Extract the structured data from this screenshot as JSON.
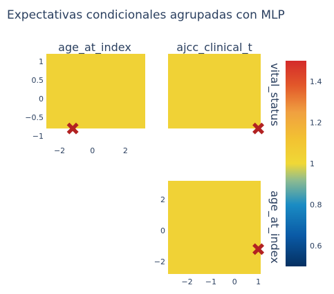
{
  "chart_data": {
    "type": "heatmap",
    "title": "Expectativas condicionales agrupadas con MLP",
    "colorbar": {
      "range": [
        0.5,
        1.5
      ],
      "ticks": [
        "0.6",
        "0.8",
        "1",
        "1.2",
        "1.4"
      ],
      "tick_values": [
        0.6,
        0.8,
        1.0,
        1.2,
        1.4
      ],
      "colorscale": [
        "#053061",
        "#2166ac",
        "#0571b0",
        "#4393c3",
        "#92c5de",
        "#f0d836",
        "#f1c232",
        "#f4a582",
        "#e0582a",
        "#d6302a"
      ]
    },
    "panels": [
      {
        "id": "age-vital",
        "column_title": "age_at_index",
        "row_title": "",
        "xlim": [
          -2.8,
          3.2
        ],
        "ylim": [
          -1.0,
          1.2
        ],
        "x_ticks": [
          "−2",
          "0",
          "2"
        ],
        "x_tick_values": [
          -2,
          0,
          2
        ],
        "y_ticks": [
          "−1",
          "−0.5",
          "0",
          "0.5",
          "1"
        ],
        "y_tick_values": [
          -1,
          -0.5,
          0,
          0.5,
          1
        ],
        "cell": {
          "x": [
            -2.8,
            3.2
          ],
          "y": [
            -0.8,
            1.2
          ],
          "value": 1.0
        },
        "marker": {
          "x": -1.2,
          "y": -0.8
        }
      },
      {
        "id": "ajcc-vital",
        "column_title": "ajcc_clinical_t",
        "row_title": "vital_status",
        "xlim": [
          -2.8,
          1.1
        ],
        "ylim": [
          -1.0,
          1.2
        ],
        "x_ticks": [],
        "x_tick_values": [],
        "y_ticks": [],
        "y_tick_values": [],
        "cell": {
          "x": [
            -2.8,
            1.1
          ],
          "y": [
            -0.8,
            1.2
          ],
          "value": 1.0
        },
        "marker": {
          "x": 1.0,
          "y": -0.8
        }
      },
      {
        "id": "ajcc-age",
        "column_title": "",
        "row_title": "age_at_index",
        "xlim": [
          -2.8,
          1.1
        ],
        "ylim": [
          -2.8,
          3.2
        ],
        "x_ticks": [
          "−2",
          "−1",
          "0",
          "1"
        ],
        "x_tick_values": [
          -2,
          -1,
          0,
          1
        ],
        "y_ticks": [
          "−2",
          "0",
          "2"
        ],
        "y_tick_values": [
          -2,
          0,
          2
        ],
        "cell": {
          "x": [
            -2.8,
            1.1
          ],
          "y": [
            -2.8,
            3.2
          ],
          "value": 1.0
        },
        "marker": {
          "x": 1.0,
          "y": -1.2
        }
      }
    ],
    "colors": {
      "cell_fill": "#f0d236",
      "marker": "#b22222",
      "text": "#2a3f5f"
    }
  }
}
